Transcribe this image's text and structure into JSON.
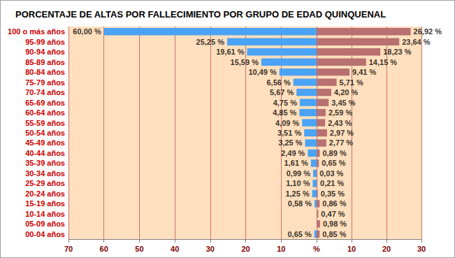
{
  "chart_data": [
    {
      "type": "bar",
      "orientation": "horizontal",
      "title": "PORCENTAJE DE ALTAS POR FALLECIMIENTO POR GRUPO DE EDAD QUINQUENAL",
      "categories": [
        "100 o más años",
        "95-99 años",
        "90-94 años",
        "85-89 años",
        "80-84 años",
        "75-79 años",
        "70-74 años",
        "65-69 años",
        "60-64 años",
        "55-59 años",
        "50-54 años",
        "45-49 años",
        "40-44 años",
        "35-39 años",
        "30-34 años",
        "25-29 años",
        "20-24 años",
        "15-19 años",
        "10-14 años",
        "05-09 años",
        "00-04 años"
      ],
      "values": [
        60.0,
        25.25,
        19.61,
        15.59,
        10.49,
        6.56,
        5.67,
        4.75,
        4.85,
        4.09,
        3.51,
        3.25,
        2.49,
        1.61,
        0.99,
        1.1,
        1.25,
        0.58,
        null,
        null,
        0.65
      ],
      "value_labels": [
        "60,00 %",
        "25,25 %",
        "19,61 %",
        "15,59 %",
        "10,49 %",
        "6,56 %",
        "5,67 %",
        "4,75 %",
        "4,85 %",
        "4,09 %",
        "3,51 %",
        "3,25 %",
        "2,49 %",
        "1,61 %",
        "0,99 %",
        "1,10 %",
        "1,25 %",
        "0,58 %",
        null,
        null,
        "0,65 %"
      ],
      "color": "#4aa3f5",
      "xlim": [
        70,
        0
      ],
      "xticks": [
        {
          "value": 0,
          "label": "%"
        },
        10,
        20,
        30,
        40,
        50,
        60,
        70
      ],
      "data_labels": true,
      "grid": true
    },
    {
      "type": "bar",
      "orientation": "horizontal",
      "categories": [
        "100 o más años",
        "95-99 años",
        "90-94 años",
        "85-89 años",
        "80-84 años",
        "75-79 años",
        "70-74 años",
        "65-69 años",
        "60-64 años",
        "55-59 años",
        "50-54 años",
        "45-49 años",
        "40-44 años",
        "35-39 años",
        "30-34 años",
        "25-29 años",
        "20-24 años",
        "15-19 años",
        "10-14 años",
        "05-09 años",
        "00-04 años"
      ],
      "values": [
        26.92,
        23.64,
        18.23,
        14.15,
        9.41,
        5.71,
        4.2,
        3.45,
        2.59,
        2.43,
        2.97,
        2.77,
        0.89,
        0.65,
        0.03,
        0.21,
        0.35,
        0.86,
        0.47,
        0.98,
        0.85
      ],
      "value_labels": [
        "26,92 %",
        "23,64 %",
        "18,23 %",
        "14,15 %",
        "9,41 %",
        "5,71 %",
        "4,20 %",
        "3,45 %",
        "2,59 %",
        "2,43 %",
        "2,97 %",
        "2,77 %",
        "0,89 %",
        "0,65 %",
        "0,03 %",
        "0,21 %",
        "0,35 %",
        "0,86 %",
        "0,47 %",
        "0,98 %",
        "0,85 %"
      ],
      "color": "#b87070",
      "xlim": [
        0,
        30
      ],
      "xticks": [
        10,
        20,
        30
      ],
      "data_labels": true,
      "tick_labels": "x",
      "grid": true
    }
  ]
}
